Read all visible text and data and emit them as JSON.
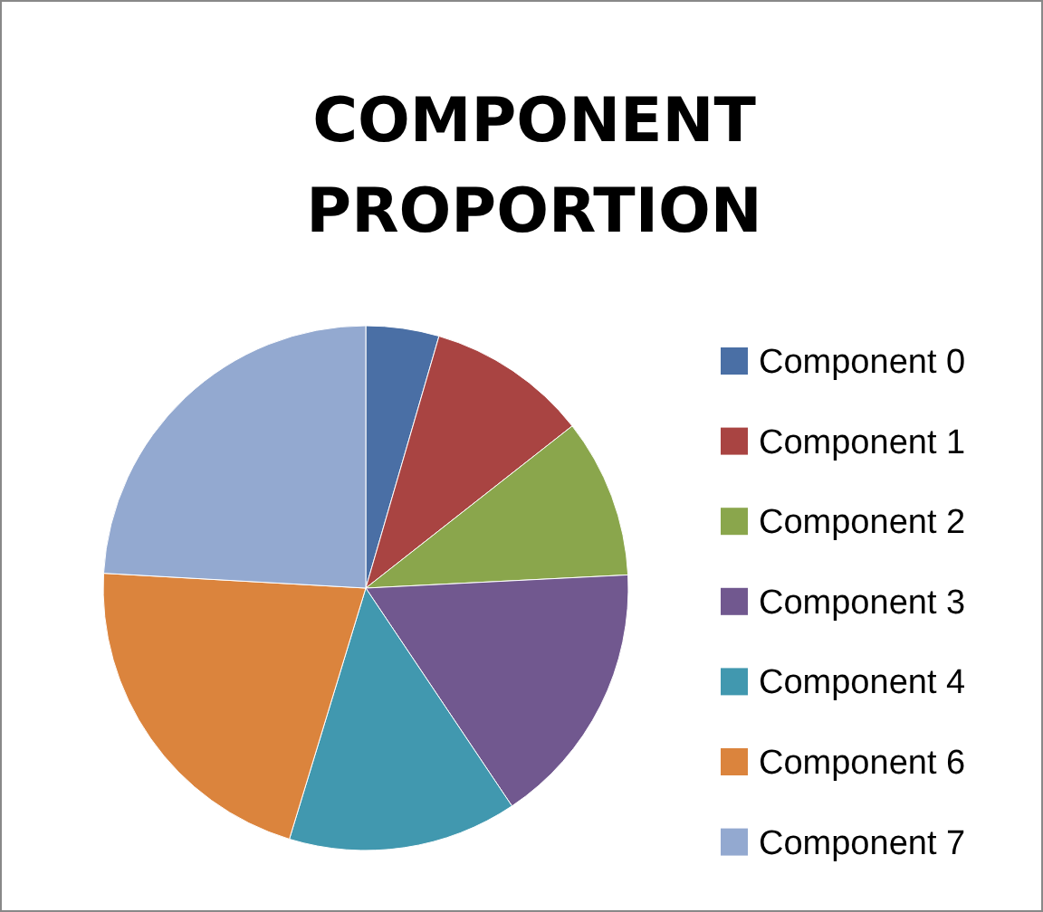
{
  "chart_data": {
    "type": "pie",
    "title": "COMPONENT PROPORTION",
    "categories": [
      "Component 0",
      "Component 1",
      "Component 2",
      "Component 3",
      "Component 4",
      "Component 6",
      "Component 7"
    ],
    "values": [
      4.5,
      9.9,
      9.8,
      16.4,
      14.1,
      21.2,
      24.1
    ],
    "colors": [
      "#4a6fa5",
      "#a94442",
      "#8aa64c",
      "#71588f",
      "#4198af",
      "#db843d",
      "#93a9d0"
    ],
    "legend": "right"
  }
}
